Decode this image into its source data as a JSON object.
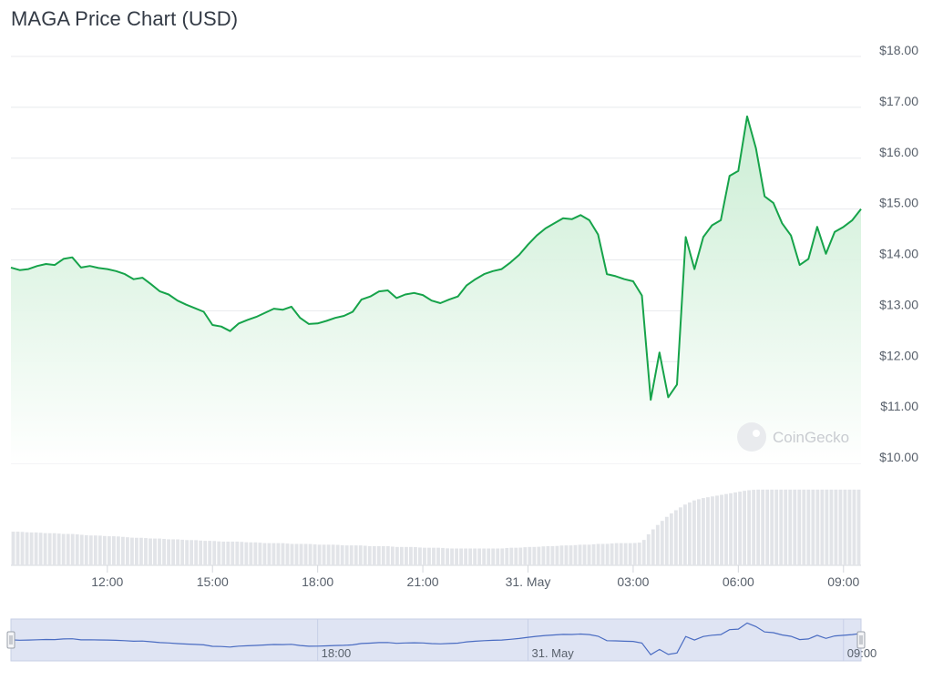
{
  "title": "MAGA Price Chart (USD)",
  "watermark": "CoinGecko",
  "colors": {
    "line": "#16a34a",
    "area_top": "#c6ecd0",
    "area_bottom": "#ffffff",
    "grid": "#e8eaed",
    "volume": "#e2e4e8",
    "navigator_fill": "#dfe4f3",
    "navigator_line": "#4a6cc2"
  },
  "chart_data": {
    "type": "line",
    "title": "MAGA Price Chart (USD)",
    "xlabel": "",
    "ylabel": "",
    "ylim": [
      10,
      18
    ],
    "xlim": [
      "30 May 09:15",
      "31 May 09:30"
    ],
    "y_ticks": [
      "$18.00",
      "$17.00",
      "$16.00",
      "$15.00",
      "$14.00",
      "$13.00",
      "$12.00",
      "$11.00",
      "$10.00"
    ],
    "y_tick_values": [
      18,
      17,
      16,
      15,
      14,
      13,
      12,
      11,
      10
    ],
    "x_ticks": [
      "12:00",
      "15:00",
      "18:00",
      "21:00",
      "31. May",
      "03:00",
      "06:00",
      "09:00"
    ],
    "x_tick_hours": [
      12,
      15,
      18,
      21,
      24,
      27,
      30,
      33
    ],
    "grid": true,
    "series": [
      {
        "name": "",
        "x_hours": [
          9.25,
          9.5,
          9.75,
          10.0,
          10.25,
          10.5,
          10.75,
          11.0,
          11.25,
          11.5,
          11.75,
          12.0,
          12.25,
          12.5,
          12.75,
          13.0,
          13.25,
          13.5,
          13.75,
          14.0,
          14.25,
          14.5,
          14.75,
          15.0,
          15.25,
          15.5,
          15.75,
          16.0,
          16.25,
          16.5,
          16.75,
          17.0,
          17.25,
          17.5,
          17.75,
          18.0,
          18.25,
          18.5,
          18.75,
          19.0,
          19.25,
          19.5,
          19.75,
          20.0,
          20.25,
          20.5,
          20.75,
          21.0,
          21.25,
          21.5,
          21.75,
          22.0,
          22.25,
          22.5,
          22.75,
          23.0,
          23.25,
          23.5,
          23.75,
          24.0,
          24.25,
          24.5,
          24.75,
          25.0,
          25.25,
          25.5,
          25.75,
          26.0,
          26.25,
          26.5,
          26.75,
          27.0,
          27.25,
          27.5,
          27.75,
          28.0,
          28.25,
          28.5,
          28.75,
          29.0,
          29.25,
          29.5,
          29.75,
          30.0,
          30.25,
          30.5,
          30.75,
          31.0,
          31.25,
          31.5,
          31.75,
          32.0,
          32.25,
          32.5,
          32.75,
          33.0,
          33.25,
          33.5
        ],
        "values": [
          13.85,
          13.8,
          13.82,
          13.88,
          13.92,
          13.9,
          14.02,
          14.05,
          13.85,
          13.88,
          13.84,
          13.82,
          13.78,
          13.72,
          13.62,
          13.65,
          13.52,
          13.38,
          13.32,
          13.2,
          13.12,
          13.05,
          12.98,
          12.72,
          12.69,
          12.6,
          12.75,
          12.82,
          12.88,
          12.96,
          13.04,
          13.02,
          13.08,
          12.86,
          12.74,
          12.75,
          12.8,
          12.86,
          12.9,
          12.98,
          13.22,
          13.28,
          13.38,
          13.4,
          13.25,
          13.32,
          13.35,
          13.31,
          13.2,
          13.15,
          13.22,
          13.28,
          13.5,
          13.62,
          13.72,
          13.78,
          13.82,
          13.95,
          14.1,
          14.3,
          14.48,
          14.62,
          14.72,
          14.82,
          14.8,
          14.88,
          14.78,
          14.5,
          13.72,
          13.68,
          13.62,
          13.58,
          13.3,
          11.25,
          12.18,
          11.3,
          11.55,
          14.45,
          13.82,
          14.45,
          14.68,
          14.78,
          15.65,
          15.75,
          16.82,
          16.2,
          15.25,
          15.12,
          14.72,
          14.48,
          13.9,
          14.02,
          14.65,
          14.12,
          14.55,
          14.65,
          14.78,
          15.0
        ],
        "volume_relative": [
          0.44,
          0.44,
          0.43,
          0.43,
          0.42,
          0.42,
          0.41,
          0.41,
          0.4,
          0.39,
          0.39,
          0.38,
          0.38,
          0.37,
          0.36,
          0.36,
          0.35,
          0.35,
          0.34,
          0.34,
          0.33,
          0.33,
          0.32,
          0.32,
          0.31,
          0.31,
          0.31,
          0.3,
          0.3,
          0.29,
          0.29,
          0.29,
          0.28,
          0.28,
          0.28,
          0.27,
          0.27,
          0.27,
          0.26,
          0.26,
          0.26,
          0.25,
          0.25,
          0.25,
          0.24,
          0.24,
          0.24,
          0.23,
          0.23,
          0.23,
          0.22,
          0.22,
          0.22,
          0.22,
          0.22,
          0.22,
          0.22,
          0.23,
          0.23,
          0.24,
          0.24,
          0.25,
          0.25,
          0.26,
          0.26,
          0.27,
          0.27,
          0.28,
          0.28,
          0.29,
          0.29,
          0.29,
          0.3,
          0.44,
          0.55,
          0.65,
          0.73,
          0.8,
          0.85,
          0.88,
          0.9,
          0.92,
          0.94,
          0.96,
          0.98,
          0.99,
          0.99,
          0.99,
          0.99,
          0.99,
          0.99,
          0.99,
          0.99,
          0.99,
          0.99,
          0.99,
          0.99,
          0.99
        ]
      }
    ]
  },
  "navigator": {
    "x_ticks": [
      "18:00",
      "31. May",
      "09:00"
    ],
    "x_tick_hours": [
      18,
      24,
      33
    ]
  }
}
